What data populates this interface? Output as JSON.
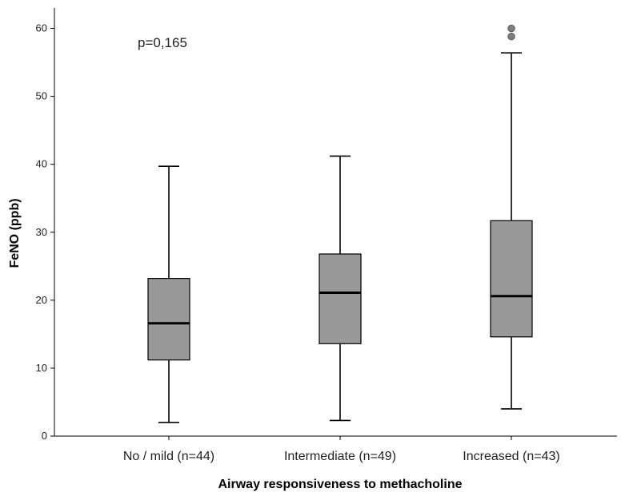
{
  "chart_data": {
    "type": "boxplot",
    "xlabel": "Airway responsiveness to methacholine",
    "ylabel": "FeNO (ppb)",
    "ylim": [
      0,
      63
    ],
    "yticks": [
      0,
      10,
      20,
      30,
      40,
      50,
      60
    ],
    "grid": false,
    "annotation": "p=0,165",
    "colors": {
      "box_fill": "#999999",
      "outline": "#000000",
      "outlier": "#7f7f7f"
    },
    "categories": [
      "No / mild (n=44)",
      "Intermediate (n=49)",
      "Increased (n=43)"
    ],
    "boxes": [
      {
        "whisker_low": 2,
        "q1": 11.2,
        "median": 16.6,
        "q3": 23.2,
        "whisker_high": 39.7,
        "outliers": []
      },
      {
        "whisker_low": 2.3,
        "q1": 13.6,
        "median": 21.1,
        "q3": 26.8,
        "whisker_high": 41.2,
        "outliers": []
      },
      {
        "whisker_low": 4,
        "q1": 14.6,
        "median": 20.6,
        "q3": 31.7,
        "whisker_high": 56.4,
        "outliers": [
          58.8,
          60
        ]
      }
    ]
  }
}
